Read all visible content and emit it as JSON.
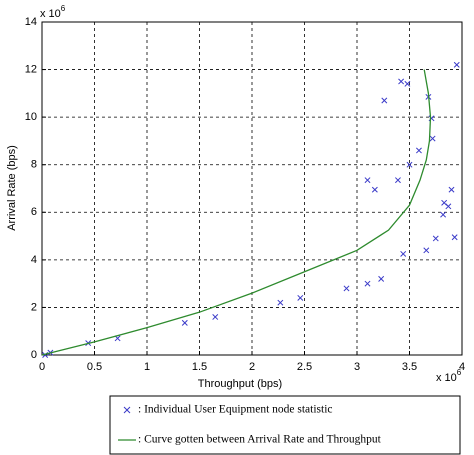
{
  "chart_data": {
    "type": "scatter",
    "xlabel": "Throughput (bps)",
    "ylabel": "Arrival Rate (bps)",
    "xscale_label": {
      "base": "x 10",
      "exp": "6"
    },
    "yscale_label": {
      "base": "x 10",
      "exp": "6"
    },
    "xlim": [
      0,
      4
    ],
    "ylim": [
      0,
      14
    ],
    "xticks": [
      0,
      0.5,
      1,
      1.5,
      2,
      2.5,
      3,
      3.5,
      4
    ],
    "yticks": [
      0,
      2,
      4,
      6,
      8,
      10,
      12,
      14
    ],
    "grid": true,
    "series": [
      {
        "name": ": Individual User Equipment node statistic",
        "type": "scatter",
        "color": "#3a3ac8",
        "x": [
          0.03,
          0.08,
          0.44,
          0.72,
          1.36,
          1.65,
          2.27,
          2.46,
          2.9,
          3.1,
          3.23,
          3.1,
          3.17,
          3.26,
          3.39,
          3.42,
          3.48,
          3.5,
          3.44,
          3.59,
          3.66,
          3.68,
          3.71,
          3.72,
          3.75,
          3.82,
          3.83,
          3.87,
          3.9,
          3.93,
          3.95
        ],
        "values": [
          0,
          0.1,
          0.5,
          0.7,
          1.35,
          1.6,
          2.2,
          2.4,
          2.8,
          3.0,
          3.2,
          7.35,
          6.95,
          10.7,
          7.35,
          11.5,
          11.4,
          8.0,
          4.25,
          8.6,
          4.4,
          10.85,
          9.95,
          9.1,
          4.9,
          5.9,
          6.4,
          6.25,
          6.95,
          4.95,
          12.2
        ]
      },
      {
        "name": ": Curve gotten between Arrival Rate and Throughput",
        "type": "line",
        "color": "#2e8b2e",
        "x": [
          0,
          0.5,
          1,
          1.5,
          2,
          2.5,
          3,
          3.3,
          3.5,
          3.6,
          3.66,
          3.69,
          3.7,
          3.68,
          3.64
        ],
        "values": [
          0,
          0.55,
          1.15,
          1.8,
          2.6,
          3.5,
          4.4,
          5.25,
          6.3,
          7.35,
          8.2,
          9.0,
          10,
          11,
          12
        ]
      }
    ]
  }
}
